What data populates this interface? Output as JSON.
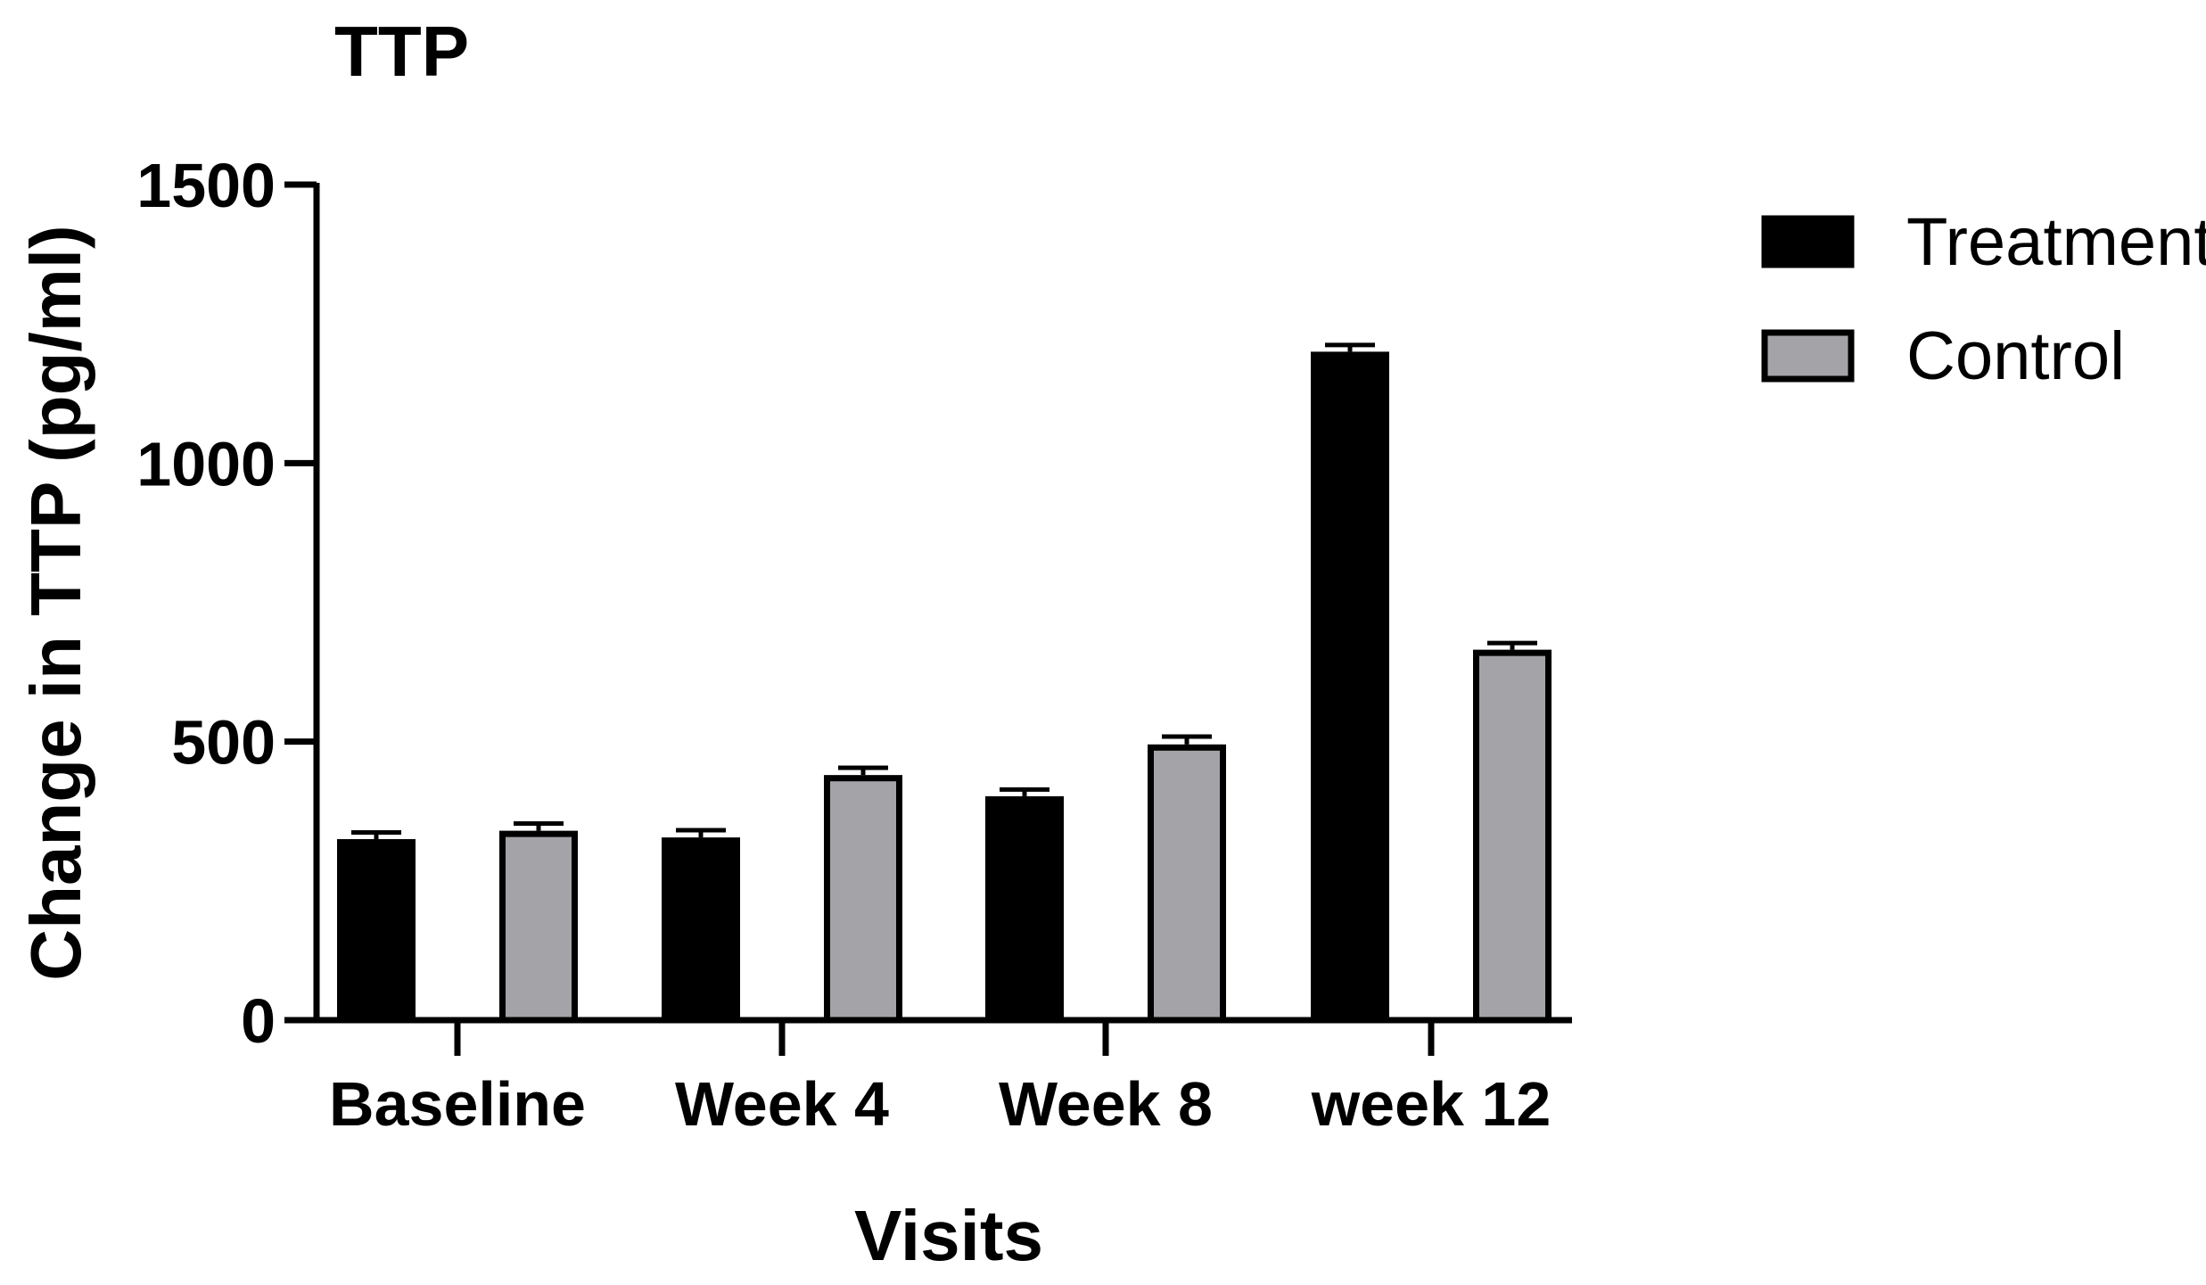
{
  "chart_data": {
    "type": "bar",
    "title": "TTP",
    "xlabel": "Visits",
    "ylabel": "Change in TTP (pg/ml)",
    "categories": [
      "Baseline",
      "Week 4",
      "Week 8",
      "week 12"
    ],
    "ylim": [
      0,
      1500
    ],
    "yticks": [
      0,
      500,
      1000,
      1500
    ],
    "legend_position": "top-right",
    "grid": false,
    "error_bars": true,
    "series": [
      {
        "name": "Treatment",
        "values": [
          325,
          328,
          402,
          1200
        ],
        "errors": [
          12,
          13,
          12,
          12
        ],
        "fill_color": "#000000"
      },
      {
        "name": "Control",
        "values": [
          340,
          440,
          495,
          665
        ],
        "errors": [
          13,
          13,
          14,
          12
        ],
        "fill_color": "#a4a4a8"
      }
    ]
  }
}
